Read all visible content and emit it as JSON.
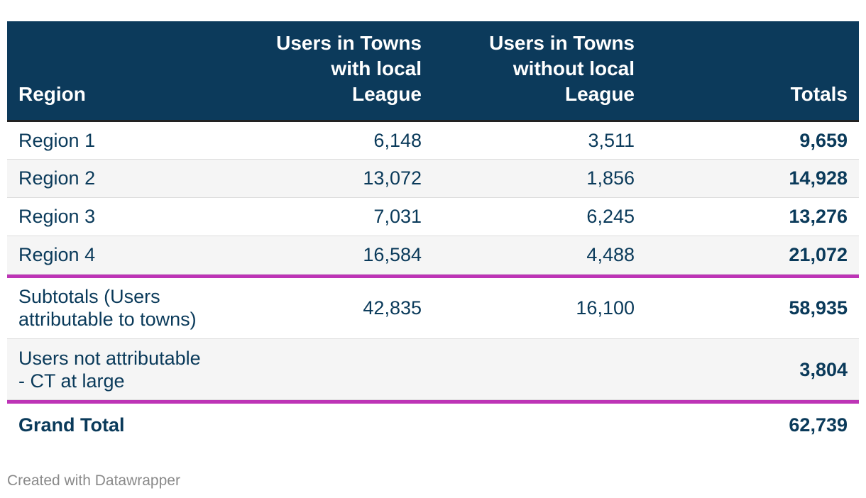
{
  "chart_data": {
    "type": "table",
    "columns": [
      "Region",
      "Users in Towns with local League",
      "Users in Towns without local League",
      "Totals"
    ],
    "rows": [
      {
        "region": "Region 1",
        "with_league": "6,148",
        "without_league": "3,511",
        "total": "9,659"
      },
      {
        "region": "Region 2",
        "with_league": "13,072",
        "without_league": "1,856",
        "total": "14,928"
      },
      {
        "region": "Region 3",
        "with_league": "7,031",
        "without_league": "6,245",
        "total": "13,276"
      },
      {
        "region": "Region 4",
        "with_league": "16,584",
        "without_league": "4,488",
        "total": "21,072"
      }
    ],
    "subtotals": {
      "label_line1": "Subtotals (Users",
      "label_line2": "attributable to towns)",
      "with_league": "42,835",
      "without_league": "16,100",
      "total": "58,935"
    },
    "not_attributable": {
      "label_line1": "Users not attributable",
      "label_line2": "- CT at large",
      "total": "3,804"
    },
    "grand_total": {
      "label": "Grand Total",
      "total": "62,739"
    }
  },
  "header": {
    "region": "Region",
    "with_league_lines": [
      "Users in Towns",
      "with local",
      "League"
    ],
    "without_league_lines": [
      "Users in Towns",
      "without local",
      "League"
    ],
    "totals": "Totals"
  },
  "colors": {
    "header_bg": "#0c3a5b",
    "separator": "#bd34b6",
    "text": "#0a3a5a"
  },
  "footer": {
    "credit": "Created with Datawrapper"
  }
}
